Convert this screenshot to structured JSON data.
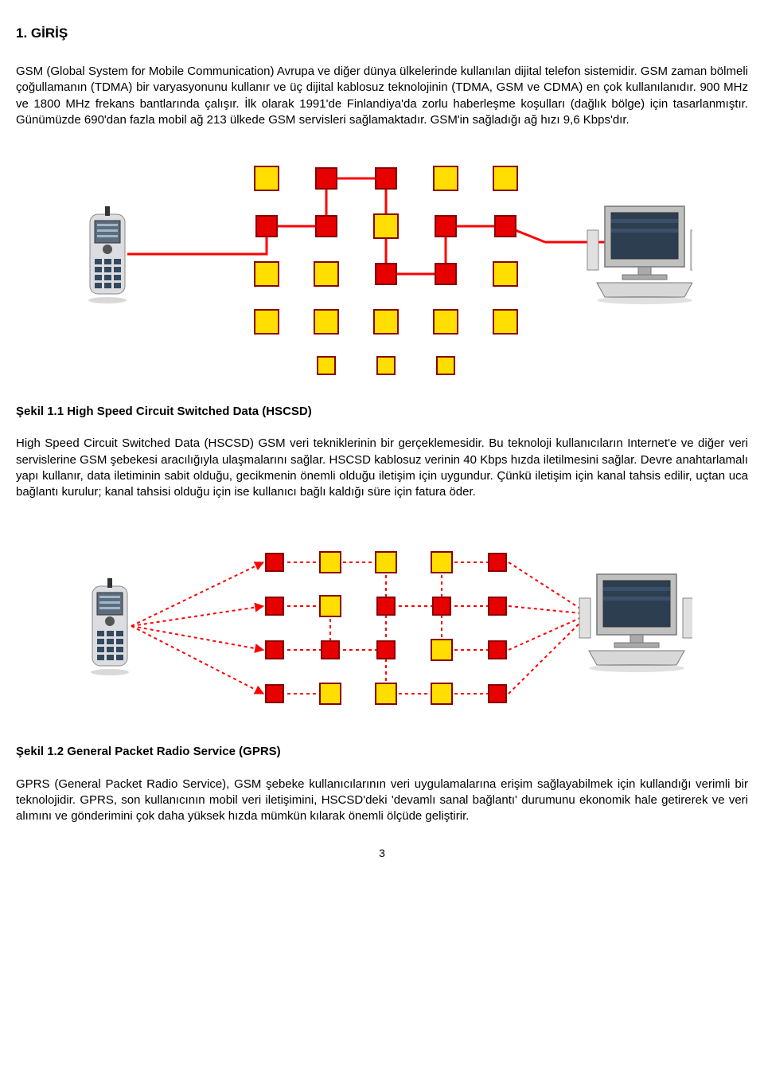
{
  "heading1": "1. GİRİŞ",
  "para1": "GSM (Global System for Mobile Communication) Avrupa ve diğer dünya ülkelerinde kullanılan dijital telefon sistemidir. GSM zaman bölmeli çoğullamanın (TDMA) bir varyasyonunu kullanır ve üç dijital kablosuz teknolojinin (TDMA, GSM ve CDMA) en çok kullanılanıdır. 900 MHz ve 1800 MHz frekans bantlarında çalışır. İlk olarak 1991'de Finlandiya'da zorlu haberleşme koşulları (dağlık bölge) için tasarlanmıştır. Günümüzde 690'dan fazla mobil ağ 213 ülkede GSM servisleri sağlamaktadır. GSM'in sağladığı ağ hızı 9,6 Kbps'dır.",
  "caption1": "Şekil 1.1 High Speed Circuit Switched Data (HSCSD)",
  "para2": "High Speed Circuit Switched Data (HSCSD) GSM veri tekniklerinin bir gerçeklemesidir. Bu teknoloji kullanıcıların Internet'e ve diğer veri servislerine GSM şebekesi aracılığıyla ulaşmalarını sağlar. HSCSD kablosuz verinin 40 Kbps hızda iletilmesini sağlar. Devre anahtarlamalı yapı kullanır, data iletiminin sabit olduğu, gecikmenin önemli olduğu iletişim için uygundur. Çünkü iletişim için kanal tahsis edilir, uçtan uca bağlantı kurulur; kanal tahsisi olduğu için ise kullanıcı bağlı kaldığı süre için fatura öder.",
  "caption2": "Şekil 1.2 General Packet Radio Service (GPRS)",
  "para3": "GPRS (General Packet Radio Service), GSM şebeke kullanıcılarının veri uygulamalarına erişim sağlayabilmek için kullandığı verimli bir teknolojidir. GPRS, son kullanıcının mobil veri iletişimini, HSCSD'deki 'devamlı sanal bağlantı' durumunu ekonomik hale getirerek ve veri alımını ve gönderimini çok daha yüksek hızda mümkün kılarak önemli ölçüde geliştirir.",
  "pageNumber": "3",
  "fig": {
    "colors": {
      "yellowFill": "#ffde00",
      "yellowStroke": "#c9a800",
      "redFill": "#e60000",
      "redStroke": "#8b0000",
      "lineRed": "#ff0000",
      "phoneBody": "#dcdde1",
      "phoneScreen": "#5d6d7e",
      "phoneKeypad": "#34495e",
      "monitorBody": "#c0c0c0",
      "monitorScreen": "#2c3e50",
      "speakerBody": "#e0e0e0"
    }
  }
}
